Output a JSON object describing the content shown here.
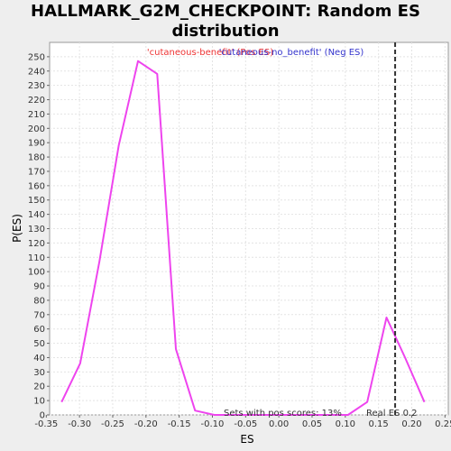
{
  "chart_data": {
    "type": "line",
    "title_line1": "HALLMARK_G2M_CHECKPOINT: Random ES",
    "title_line2": "distribution",
    "xlabel": "ES",
    "ylabel": "P(ES)",
    "xlim": [
      -0.345,
      0.255
    ],
    "ylim": [
      0,
      260
    ],
    "xticks": [
      -0.35,
      -0.3,
      -0.25,
      -0.2,
      -0.15,
      -0.1,
      -0.05,
      0.0,
      0.05,
      0.1,
      0.15,
      0.2,
      0.25
    ],
    "xtick_labels": [
      "-0.35",
      "-0.30",
      "-0.25",
      "-0.20",
      "-0.15",
      "-0.10",
      "-0.05",
      "0.00",
      "0.05",
      "0.10",
      "0.15",
      "0.20",
      "0.25"
    ],
    "yticks": [
      0,
      10,
      20,
      30,
      40,
      50,
      60,
      70,
      80,
      90,
      100,
      110,
      120,
      130,
      140,
      150,
      160,
      170,
      180,
      190,
      200,
      210,
      220,
      230,
      240,
      250
    ],
    "grid": true,
    "series": [
      {
        "color": "#ee44ee",
        "x": [
          -0.327,
          -0.299,
          -0.27,
          -0.241,
          -0.212,
          -0.183,
          -0.155,
          -0.126,
          -0.097,
          -0.068,
          -0.04,
          -0.011,
          0.018,
          0.047,
          0.075,
          0.104,
          0.133,
          0.162,
          0.19,
          0.219
        ],
        "y": [
          9,
          36,
          107,
          188,
          247,
          238,
          46,
          3,
          0,
          0,
          0,
          0,
          0,
          0,
          0,
          0,
          9,
          68,
          40,
          9
        ]
      }
    ],
    "legend": [
      {
        "label": "'cutaneous-benefit' (Pos ES)",
        "color": "#ee3333"
      },
      {
        "label": "'cutaneous-no_benefit' (Neg ES)",
        "color": "#3333cc"
      }
    ],
    "legend_position": "top",
    "real_es": 0.175,
    "real_es_label": "Real ES 0.2",
    "pos_scores_label": "Sets with pos scores: 13%"
  }
}
